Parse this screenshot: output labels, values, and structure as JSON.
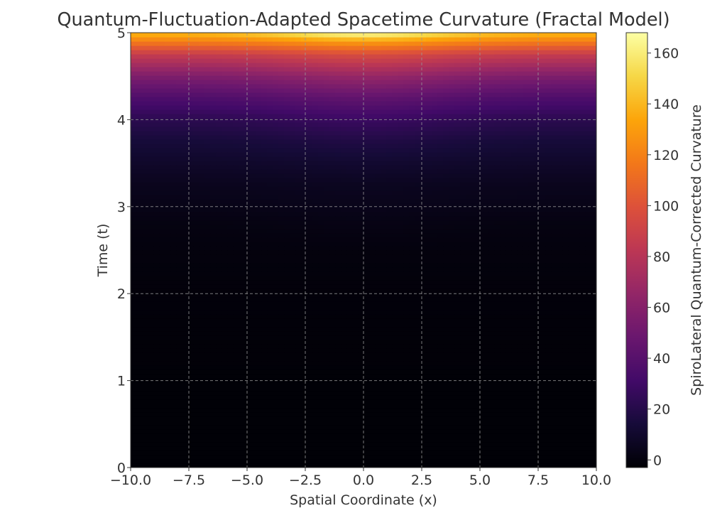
{
  "chart_data": {
    "type": "heatmap",
    "title": "Quantum-Fluctuation-Adapted Spacetime Curvature (Fractal Model)",
    "xlabel": "Spatial Coordinate (x)",
    "ylabel": "Time (t)",
    "xlim": [
      -10,
      10
    ],
    "ylim": [
      0,
      5
    ],
    "x_ticks": [
      -10.0,
      -7.5,
      -5.0,
      -2.5,
      0.0,
      2.5,
      5.0,
      7.5,
      10.0
    ],
    "x_tick_labels": [
      "−10.0",
      "−7.5",
      "−5.0",
      "−2.5",
      "0.0",
      "2.5",
      "5.0",
      "7.5",
      "10.0"
    ],
    "y_ticks": [
      0,
      1,
      2,
      3,
      4,
      5
    ],
    "y_tick_labels": [
      "0",
      "1",
      "2",
      "3",
      "4",
      "5"
    ],
    "grid": true,
    "colormap": "inferno",
    "colorbar": {
      "label": "SpiroLateral Quantum-Corrected Curvature",
      "range": [
        -3,
        168
      ],
      "ticks": [
        0,
        20,
        40,
        60,
        80,
        100,
        120,
        140,
        160
      ],
      "tick_labels": [
        "0",
        "20",
        "40",
        "60",
        "80",
        "100",
        "120",
        "140",
        "160"
      ]
    },
    "curvature_profile": {
      "t": [
        0,
        1,
        2,
        2.5,
        2.8,
        3.0,
        3.25,
        3.5,
        3.75,
        4.0,
        4.25,
        4.5,
        4.75,
        4.9,
        5.0
      ],
      "value_at_x0": [
        -2,
        -2,
        -1,
        0,
        2,
        4,
        6,
        11,
        18,
        28,
        44,
        66,
        96,
        130,
        168
      ],
      "value_at_x_edge": [
        -2,
        -2,
        -1,
        0,
        1,
        3,
        5,
        9,
        14,
        22,
        36,
        56,
        86,
        118,
        140
      ]
    }
  }
}
